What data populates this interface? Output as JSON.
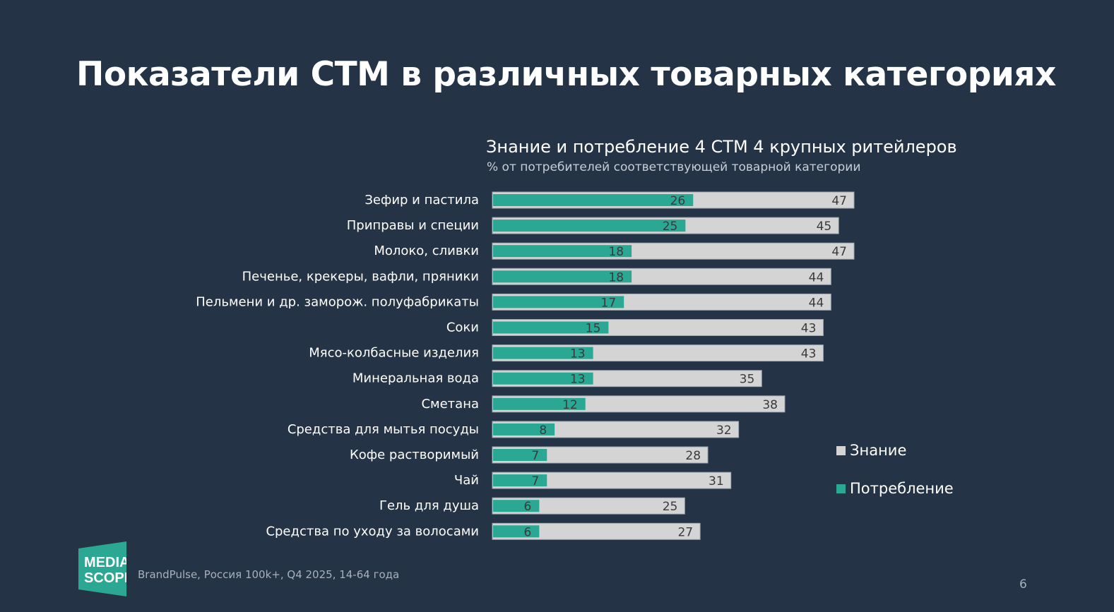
{
  "title": "Показатели СТМ в различных товарных категориях",
  "footer": {
    "source": "BrandPulse, Россия 100k+, Q4 2025, 14-64 года",
    "page_number": "6",
    "logo_text": "MEDIA SCOPE"
  },
  "colors": {
    "background": "#243346",
    "awareness": "#d4d4d4",
    "consumption": "#2aa894"
  },
  "chart_data": {
    "type": "bar",
    "orientation": "horizontal",
    "title": "Знание и потребление 4 СТМ 4 крупных ритейлеров",
    "subtitle": "% от потребителей соответствующей товарной категории",
    "categories": [
      "Зефир и пастила",
      "Приправы и специи",
      "Молоко, сливки",
      "Печенье, крекеры, вафли, пряники",
      "Пельмени и др. заморож. полуфабрикаты",
      "Соки",
      "Мясо-колбасные изделия",
      "Минеральная вода",
      "Сметана",
      "Средства для мытья посуды",
      "Кофе растворимый",
      "Чай",
      "Гель для душа",
      "Средства по уходу за волосами"
    ],
    "series": [
      {
        "name": "Знание",
        "values": [
          47,
          45,
          47,
          44,
          44,
          43,
          43,
          35,
          38,
          32,
          28,
          31,
          25,
          27
        ]
      },
      {
        "name": "Потребление",
        "values": [
          26,
          25,
          18,
          18,
          17,
          15,
          13,
          13,
          12,
          8,
          7,
          7,
          6,
          6
        ]
      }
    ],
    "xlim": [
      0,
      47
    ],
    "legend": "right",
    "grid": false
  }
}
